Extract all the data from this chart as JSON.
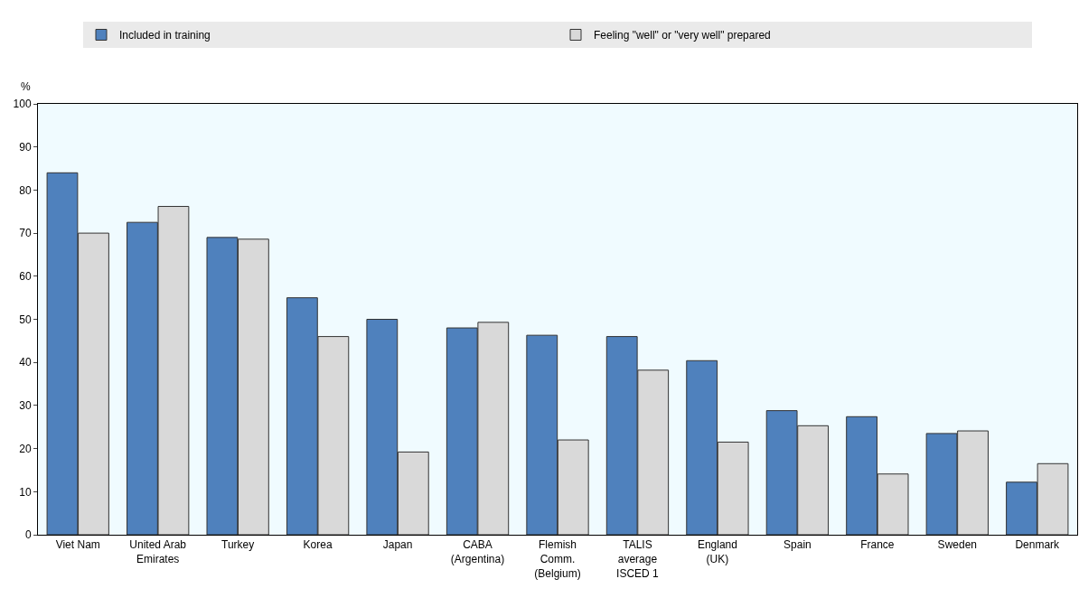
{
  "chart_data": {
    "type": "bar",
    "ylabel": "%",
    "categories": [
      "Viet Nam",
      "United Arab Emirates",
      "Turkey",
      "Korea",
      "Japan",
      "CABA (Argentina)",
      "Flemish Comm. (Belgium)",
      "TALIS average ISCED 1",
      "England (UK)",
      "Spain",
      "France",
      "Sweden",
      "Denmark"
    ],
    "series": [
      {
        "name": "Included in training",
        "color": "#4f81bd",
        "values": [
          84,
          72.5,
          69,
          55,
          50,
          48,
          46.3,
          46,
          40.4,
          28.8,
          27.4,
          23.5,
          12.2
        ]
      },
      {
        "name": "Feeling \"well\" or \"very well\" prepared",
        "color": "#d9d9d9",
        "values": [
          70,
          76.2,
          68.6,
          46,
          19.2,
          49.3,
          22,
          38.2,
          21.5,
          25.3,
          14.1,
          24.1,
          16.5
        ]
      }
    ],
    "ylim": [
      0,
      100
    ],
    "yticks": [
      0,
      10,
      20,
      30,
      40,
      50,
      60,
      70,
      80,
      90,
      100
    ],
    "grid": false,
    "legend": "top"
  }
}
